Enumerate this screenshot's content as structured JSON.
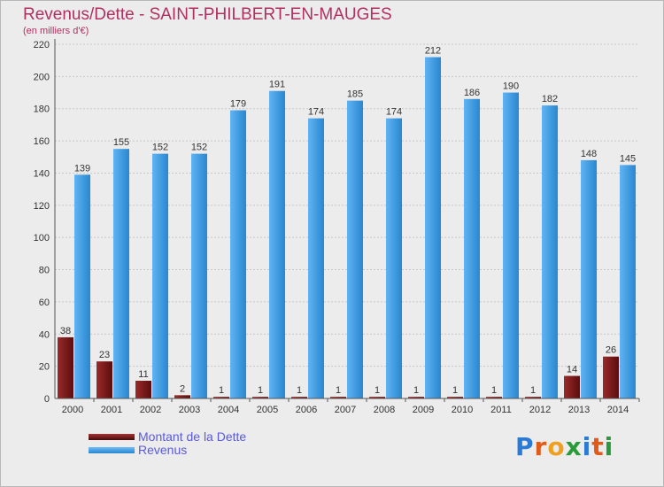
{
  "chart_data": {
    "type": "bar",
    "title": "Revenus/Dette - SAINT-PHILBERT-EN-MAUGES",
    "subtitle": "(en milliers d'€)",
    "categories": [
      "2000",
      "2001",
      "2002",
      "2003",
      "2004",
      "2005",
      "2006",
      "2007",
      "2008",
      "2009",
      "2010",
      "2011",
      "2012",
      "2013",
      "2014"
    ],
    "series": [
      {
        "name": "Montant de la Dette",
        "values": [
          38,
          23,
          11,
          2,
          1,
          1,
          1,
          1,
          1,
          1,
          1,
          1,
          1,
          14,
          26
        ],
        "color": "#7a1a1a"
      },
      {
        "name": "Revenus",
        "values": [
          139,
          155,
          152,
          152,
          179,
          191,
          174,
          185,
          174,
          212,
          186,
          190,
          182,
          148,
          145
        ],
        "color": "#3d9ee6"
      }
    ],
    "ylim": [
      0,
      220
    ],
    "yticks": [
      0,
      20,
      40,
      60,
      80,
      100,
      120,
      140,
      160,
      180,
      200,
      220
    ],
    "grid": true,
    "legend_position": "bottom-left"
  },
  "logo": {
    "text": "Proxiti"
  }
}
